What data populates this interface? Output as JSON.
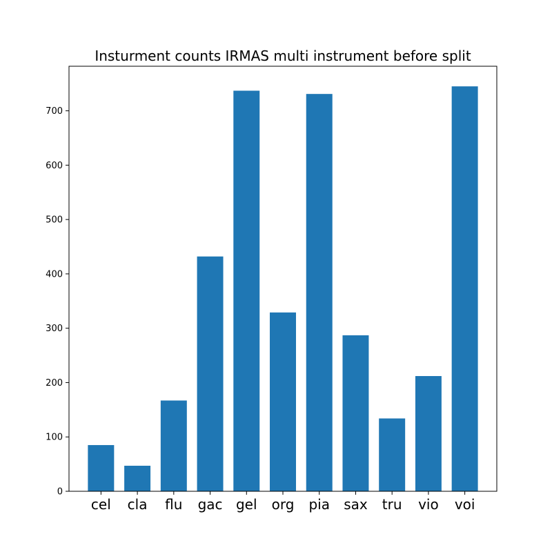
{
  "chart_data": {
    "type": "bar",
    "title": "Insturment counts IRMAS multi instrument before split",
    "xlabel": "",
    "ylabel": "",
    "categories": [
      "cel",
      "cla",
      "flu",
      "gac",
      "gel",
      "org",
      "pia",
      "sax",
      "tru",
      "vio",
      "voi"
    ],
    "values": [
      85,
      47,
      167,
      432,
      737,
      329,
      731,
      287,
      134,
      212,
      745
    ],
    "ylim": [
      0,
      782
    ],
    "yticks": [
      0,
      100,
      200,
      300,
      400,
      500,
      600,
      700
    ],
    "grid": false,
    "bar_color": "#1f77b4"
  }
}
